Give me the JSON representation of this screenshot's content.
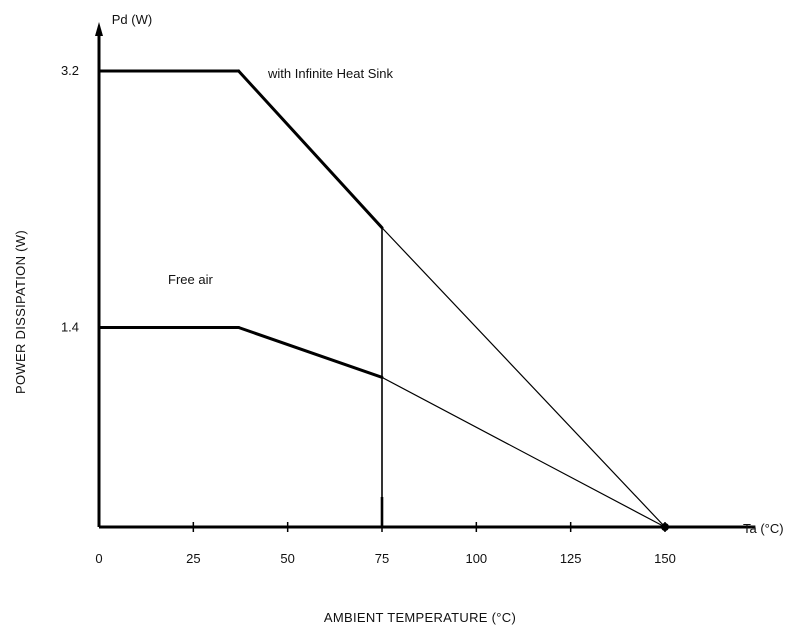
{
  "chart_data": {
    "type": "line",
    "y_axis_caption": "Pd (W)",
    "x_axis_caption": "Ta (°C)",
    "xlabel": "AMBIENT TEMPERATURE (°C)",
    "ylabel": "POWER DISSIPATION (W)",
    "xlim": [
      0,
      166
    ],
    "ylim": [
      0,
      3.6
    ],
    "x_ticks": [
      0,
      25,
      50,
      75,
      100,
      125,
      150
    ],
    "x_tick_labels": [
      "0",
      "25",
      "50",
      "75",
      "100",
      "125",
      "150"
    ],
    "y_ticks": [
      1.4,
      3.2
    ],
    "y_tick_labels": [
      "1.4",
      "3.2"
    ],
    "grid": false,
    "series": [
      {
        "name": "with Infinite Heat Sink",
        "x": [
          0,
          37,
          75,
          150
        ],
        "y": [
          3.2,
          3.2,
          2.1,
          0
        ],
        "bold_until_x": 75
      },
      {
        "name": "Free air",
        "x": [
          0,
          37,
          75,
          150
        ],
        "y": [
          1.4,
          1.4,
          1.05,
          0
        ],
        "bold_until_x": 75
      }
    ],
    "vertical_marker_x": 75
  }
}
